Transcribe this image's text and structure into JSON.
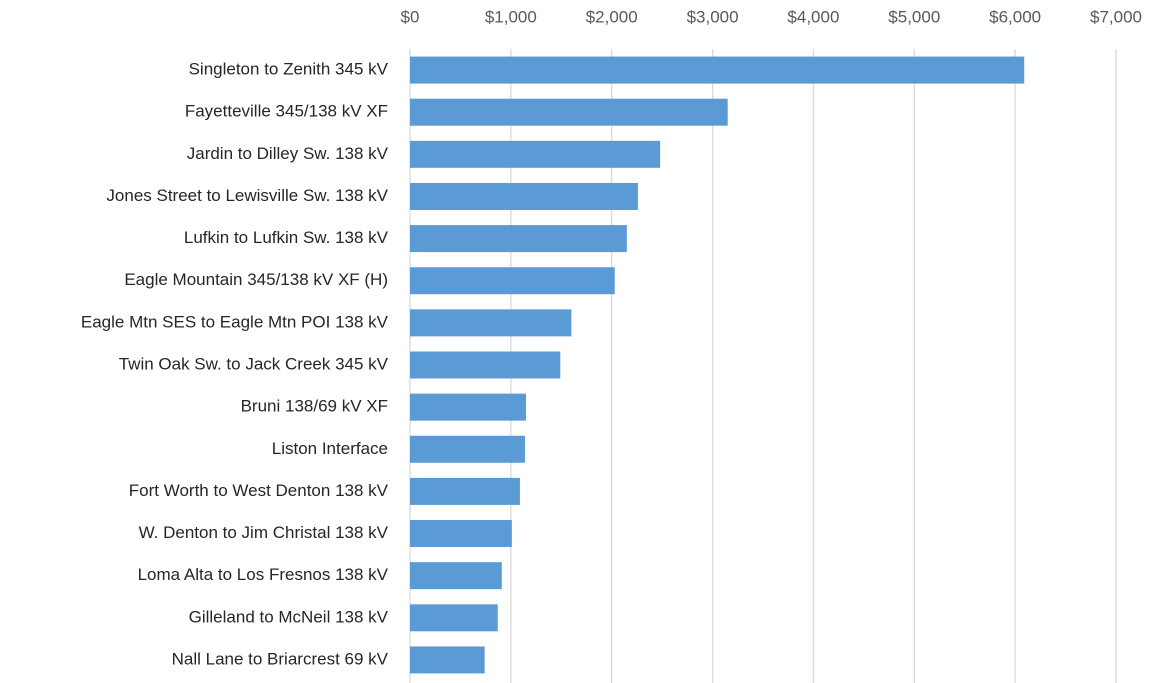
{
  "chart_data": {
    "type": "hbar",
    "categories": [
      "Singleton to Zenith 345 kV",
      "Fayetteville 345/138 kV XF",
      "Jardin to Dilley Sw. 138 kV",
      "Jones Street to Lewisville Sw. 138 kV",
      "Lufkin to Lufkin Sw. 138 kV",
      "Eagle Mountain 345/138 kV XF (H)",
      "Eagle Mtn SES to Eagle Mtn POI 138 kV",
      "Twin Oak Sw. to Jack Creek 345 kV",
      "Bruni 138/69 kV XF",
      "Liston Interface",
      "Fort Worth to West Denton 138 kV",
      "W. Denton to Jim Christal 138 kV",
      "Loma Alta to Los Fresnos 138 kV",
      "Gilleland to McNeil 138 kV",
      "Nall Lane to Briarcrest 69 kV"
    ],
    "values": [
      6090,
      3150,
      2480,
      2260,
      2150,
      2030,
      1600,
      1490,
      1150,
      1140,
      1090,
      1010,
      910,
      870,
      740
    ],
    "color": "#5b9bd5",
    "xlim": [
      0,
      7000
    ],
    "xticks": [
      {
        "value": 0,
        "label": "$0"
      },
      {
        "value": 1000,
        "label": "$1,000"
      },
      {
        "value": 2000,
        "label": "$2,000"
      },
      {
        "value": 3000,
        "label": "$3,000"
      },
      {
        "value": 4000,
        "label": "$4,000"
      },
      {
        "value": 5000,
        "label": "$5,000"
      },
      {
        "value": 6000,
        "label": "$6,000"
      },
      {
        "value": 7000,
        "label": "$7,000"
      }
    ],
    "grid": true
  }
}
